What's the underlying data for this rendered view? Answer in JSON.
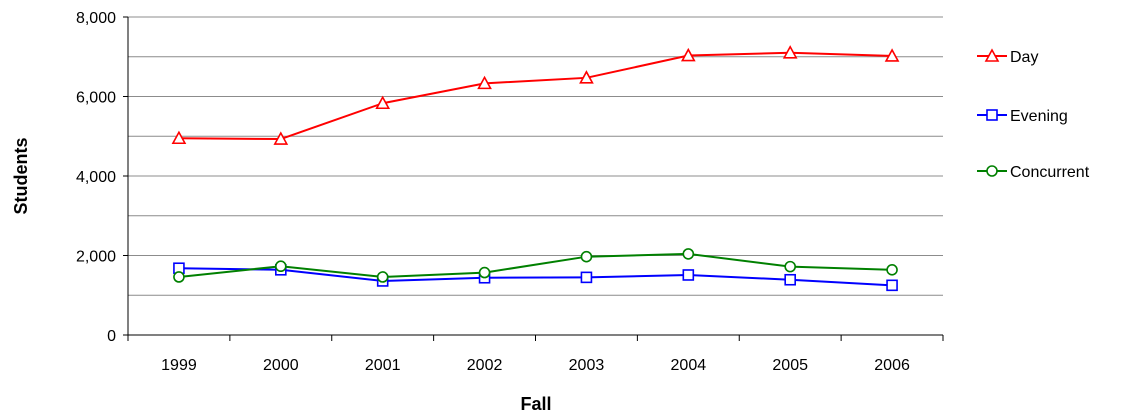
{
  "chart_data": {
    "type": "line",
    "title": "",
    "xlabel": "Fall",
    "ylabel": "Students",
    "categories": [
      "1999",
      "2000",
      "2001",
      "2002",
      "2003",
      "2004",
      "2005",
      "2006"
    ],
    "ylim": [
      0,
      8000
    ],
    "yticks": [
      0,
      2000,
      4000,
      6000,
      8000
    ],
    "ytick_labels": [
      "0",
      "2,000",
      "4,000",
      "6,000",
      "8,000"
    ],
    "grid": "horizontal, every 1,000",
    "legend_position": "right",
    "series": [
      {
        "name": "Day",
        "color": "#ff0000",
        "marker": "triangle",
        "values": [
          4950,
          4930,
          5830,
          6330,
          6470,
          7030,
          7100,
          7020
        ]
      },
      {
        "name": "Evening",
        "color": "#0000ff",
        "marker": "square",
        "values": [
          1680,
          1640,
          1360,
          1440,
          1450,
          1510,
          1390,
          1250
        ]
      },
      {
        "name": "Concurrent",
        "color": "#008000",
        "marker": "circle",
        "values": [
          1460,
          1730,
          1460,
          1570,
          1970,
          2040,
          1720,
          1640
        ]
      }
    ]
  }
}
